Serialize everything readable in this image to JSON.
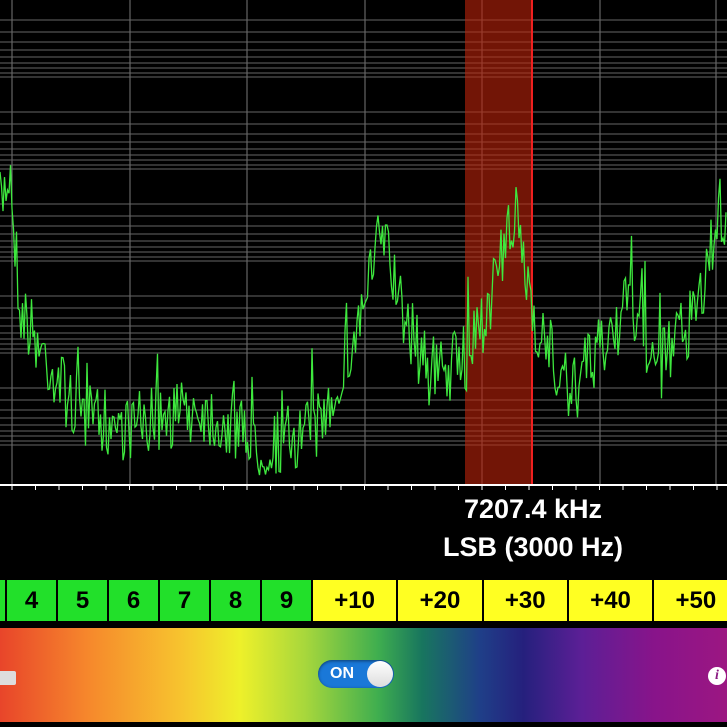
{
  "frequency": "7207.4 kHz",
  "mode": "LSB (3000 Hz)",
  "smeter": [
    "4",
    "5",
    "6",
    "7",
    "8",
    "9",
    "+10",
    "+20",
    "+30",
    "+40",
    "+50"
  ],
  "toggle": "ON",
  "info_icon": "i"
}
